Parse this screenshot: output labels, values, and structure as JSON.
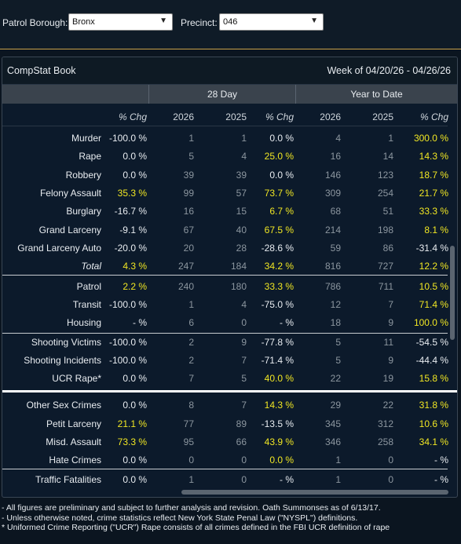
{
  "topbar": {
    "borough_label": "Patrol Borough:",
    "borough_value": "Bronx",
    "precinct_label": "Precinct:",
    "precinct_value": "046",
    "caret": "▼"
  },
  "card": {
    "title": "CompStat Book",
    "week": "Week of 04/20/26 - 04/26/26",
    "groups": [
      "28 Day",
      "Year to Date"
    ],
    "headers": [
      "% Chg",
      "2026",
      "2025",
      "% Chg",
      "2026",
      "2025",
      "% Chg"
    ]
  },
  "rows": [
    {
      "label": "Murder",
      "italic": false,
      "v": [
        "-100.0 %",
        "1",
        "1",
        "0.0 %",
        "4",
        "1",
        "300.0 %"
      ],
      "c": [
        "w",
        "g",
        "g",
        "w",
        "g",
        "g",
        "y"
      ]
    },
    {
      "label": "Rape",
      "italic": false,
      "v": [
        "0.0 %",
        "5",
        "4",
        "25.0 %",
        "16",
        "14",
        "14.3 %"
      ],
      "c": [
        "w",
        "g",
        "g",
        "y",
        "g",
        "g",
        "y"
      ]
    },
    {
      "label": "Robbery",
      "italic": false,
      "v": [
        "0.0 %",
        "39",
        "39",
        "0.0 %",
        "146",
        "123",
        "18.7 %"
      ],
      "c": [
        "w",
        "g",
        "g",
        "w",
        "g",
        "g",
        "y"
      ]
    },
    {
      "label": "Felony Assault",
      "italic": false,
      "v": [
        "35.3 %",
        "99",
        "57",
        "73.7 %",
        "309",
        "254",
        "21.7 %"
      ],
      "c": [
        "y",
        "g",
        "g",
        "y",
        "g",
        "g",
        "y"
      ]
    },
    {
      "label": "Burglary",
      "italic": false,
      "v": [
        "-16.7 %",
        "16",
        "15",
        "6.7 %",
        "68",
        "51",
        "33.3 %"
      ],
      "c": [
        "w",
        "g",
        "g",
        "y",
        "g",
        "g",
        "y"
      ]
    },
    {
      "label": "Grand Larceny",
      "italic": false,
      "v": [
        "-9.1 %",
        "67",
        "40",
        "67.5 %",
        "214",
        "198",
        "8.1 %"
      ],
      "c": [
        "w",
        "g",
        "g",
        "y",
        "g",
        "g",
        "y"
      ]
    },
    {
      "label": "Grand Larceny Auto",
      "italic": false,
      "v": [
        "-20.0 %",
        "20",
        "28",
        "-28.6 %",
        "59",
        "86",
        "-31.4 %"
      ],
      "c": [
        "w",
        "g",
        "g",
        "w",
        "g",
        "g",
        "w"
      ]
    },
    {
      "label": "Total",
      "italic": true,
      "v": [
        "4.3 %",
        "247",
        "184",
        "34.2 %",
        "816",
        "727",
        "12.2 %"
      ],
      "c": [
        "y",
        "g",
        "g",
        "y",
        "g",
        "g",
        "y"
      ]
    },
    {
      "label": "Patrol",
      "italic": false,
      "v": [
        "2.2 %",
        "240",
        "180",
        "33.3 %",
        "786",
        "711",
        "10.5 %"
      ],
      "c": [
        "y",
        "g",
        "g",
        "y",
        "g",
        "g",
        "y"
      ]
    },
    {
      "label": "Transit",
      "italic": false,
      "v": [
        "-100.0 %",
        "1",
        "4",
        "-75.0 %",
        "12",
        "7",
        "71.4 %"
      ],
      "c": [
        "w",
        "g",
        "g",
        "w",
        "g",
        "g",
        "y"
      ]
    },
    {
      "label": "Housing",
      "italic": false,
      "v": [
        "- %",
        "6",
        "0",
        "- %",
        "18",
        "9",
        "100.0 %"
      ],
      "c": [
        "w",
        "g",
        "g",
        "w",
        "g",
        "g",
        "y"
      ]
    },
    {
      "label": "Shooting Victims",
      "italic": false,
      "v": [
        "-100.0 %",
        "2",
        "9",
        "-77.8 %",
        "5",
        "11",
        "-54.5 %"
      ],
      "c": [
        "w",
        "g",
        "g",
        "w",
        "g",
        "g",
        "w"
      ]
    },
    {
      "label": "Shooting Incidents",
      "italic": false,
      "v": [
        "-100.0 %",
        "2",
        "7",
        "-71.4 %",
        "5",
        "9",
        "-44.4 %"
      ],
      "c": [
        "w",
        "g",
        "g",
        "w",
        "g",
        "g",
        "w"
      ]
    },
    {
      "label": "UCR Rape*",
      "italic": false,
      "v": [
        "0.0 %",
        "7",
        "5",
        "40.0 %",
        "22",
        "19",
        "15.8 %"
      ],
      "c": [
        "w",
        "g",
        "g",
        "y",
        "g",
        "g",
        "y"
      ]
    },
    {
      "label": "Other Sex Crimes",
      "italic": false,
      "v": [
        "0.0 %",
        "8",
        "7",
        "14.3 %",
        "29",
        "22",
        "31.8 %"
      ],
      "c": [
        "w",
        "g",
        "g",
        "y",
        "g",
        "g",
        "y"
      ]
    },
    {
      "label": "Petit Larceny",
      "italic": false,
      "v": [
        "21.1 %",
        "77",
        "89",
        "-13.5 %",
        "345",
        "312",
        "10.6 %"
      ],
      "c": [
        "y",
        "g",
        "g",
        "w",
        "g",
        "g",
        "y"
      ]
    },
    {
      "label": "Misd. Assault",
      "italic": false,
      "v": [
        "73.3 %",
        "95",
        "66",
        "43.9 %",
        "346",
        "258",
        "34.1 %"
      ],
      "c": [
        "y",
        "g",
        "g",
        "y",
        "g",
        "g",
        "y"
      ]
    },
    {
      "label": "Hate Crimes",
      "italic": false,
      "v": [
        "0.0 %",
        "0",
        "0",
        "0.0 %",
        "1",
        "0",
        "- %"
      ],
      "c": [
        "w",
        "g",
        "g",
        "y",
        "g",
        "g",
        "w"
      ]
    },
    {
      "label": "Traffic Fatalities",
      "italic": false,
      "v": [
        "0.0 %",
        "1",
        "0",
        "- %",
        "1",
        "0",
        "- %"
      ],
      "c": [
        "w",
        "g",
        "g",
        "w",
        "g",
        "g",
        "w"
      ]
    }
  ],
  "colors": {
    "yellow": "#f0e623",
    "gray": "#8c969f",
    "white": "#e8ecf0"
  },
  "footnotes": [
    "- All figures are preliminary and subject to further analysis and revision. Oath Summonses as of 6/13/17.",
    "- Unless otherwise noted, crime statistics reflect New York State Penal Law (\"NYSPL\") definitions.",
    "* Uniformed Crime Reporting (\"UCR\") Rape consists of all crimes defined in the FBI UCR definition of rape"
  ]
}
